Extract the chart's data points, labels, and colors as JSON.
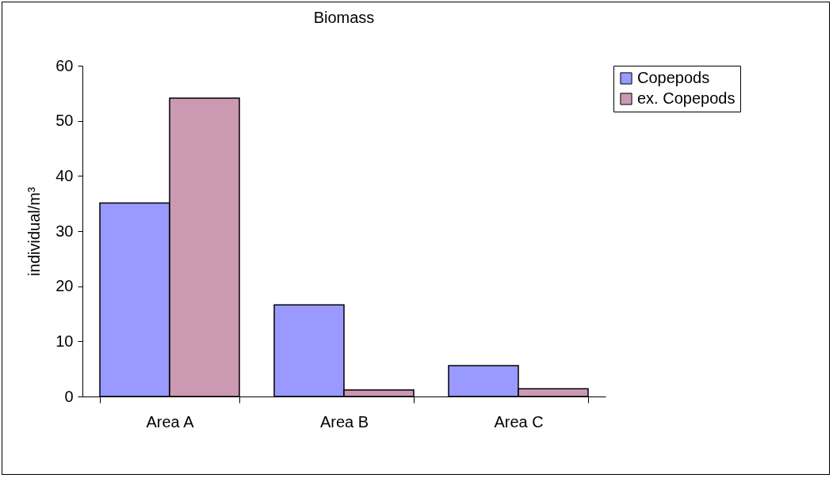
{
  "chart_data": {
    "type": "bar",
    "title": "Biomass",
    "ylabel": "individual/m³",
    "categories": [
      "Area A",
      "Area B",
      "Area C"
    ],
    "series": [
      {
        "name": "Copepods",
        "color": "#9999ff",
        "values": [
          35.1,
          16.6,
          5.6
        ]
      },
      {
        "name": "ex. Copepods",
        "color": "#cc99b3",
        "values": [
          54.1,
          1.2,
          1.4
        ]
      }
    ],
    "ylim": [
      0,
      60
    ],
    "yticks": [
      0,
      10,
      20,
      30,
      40,
      50,
      60
    ],
    "grid": false,
    "legend": "right"
  }
}
